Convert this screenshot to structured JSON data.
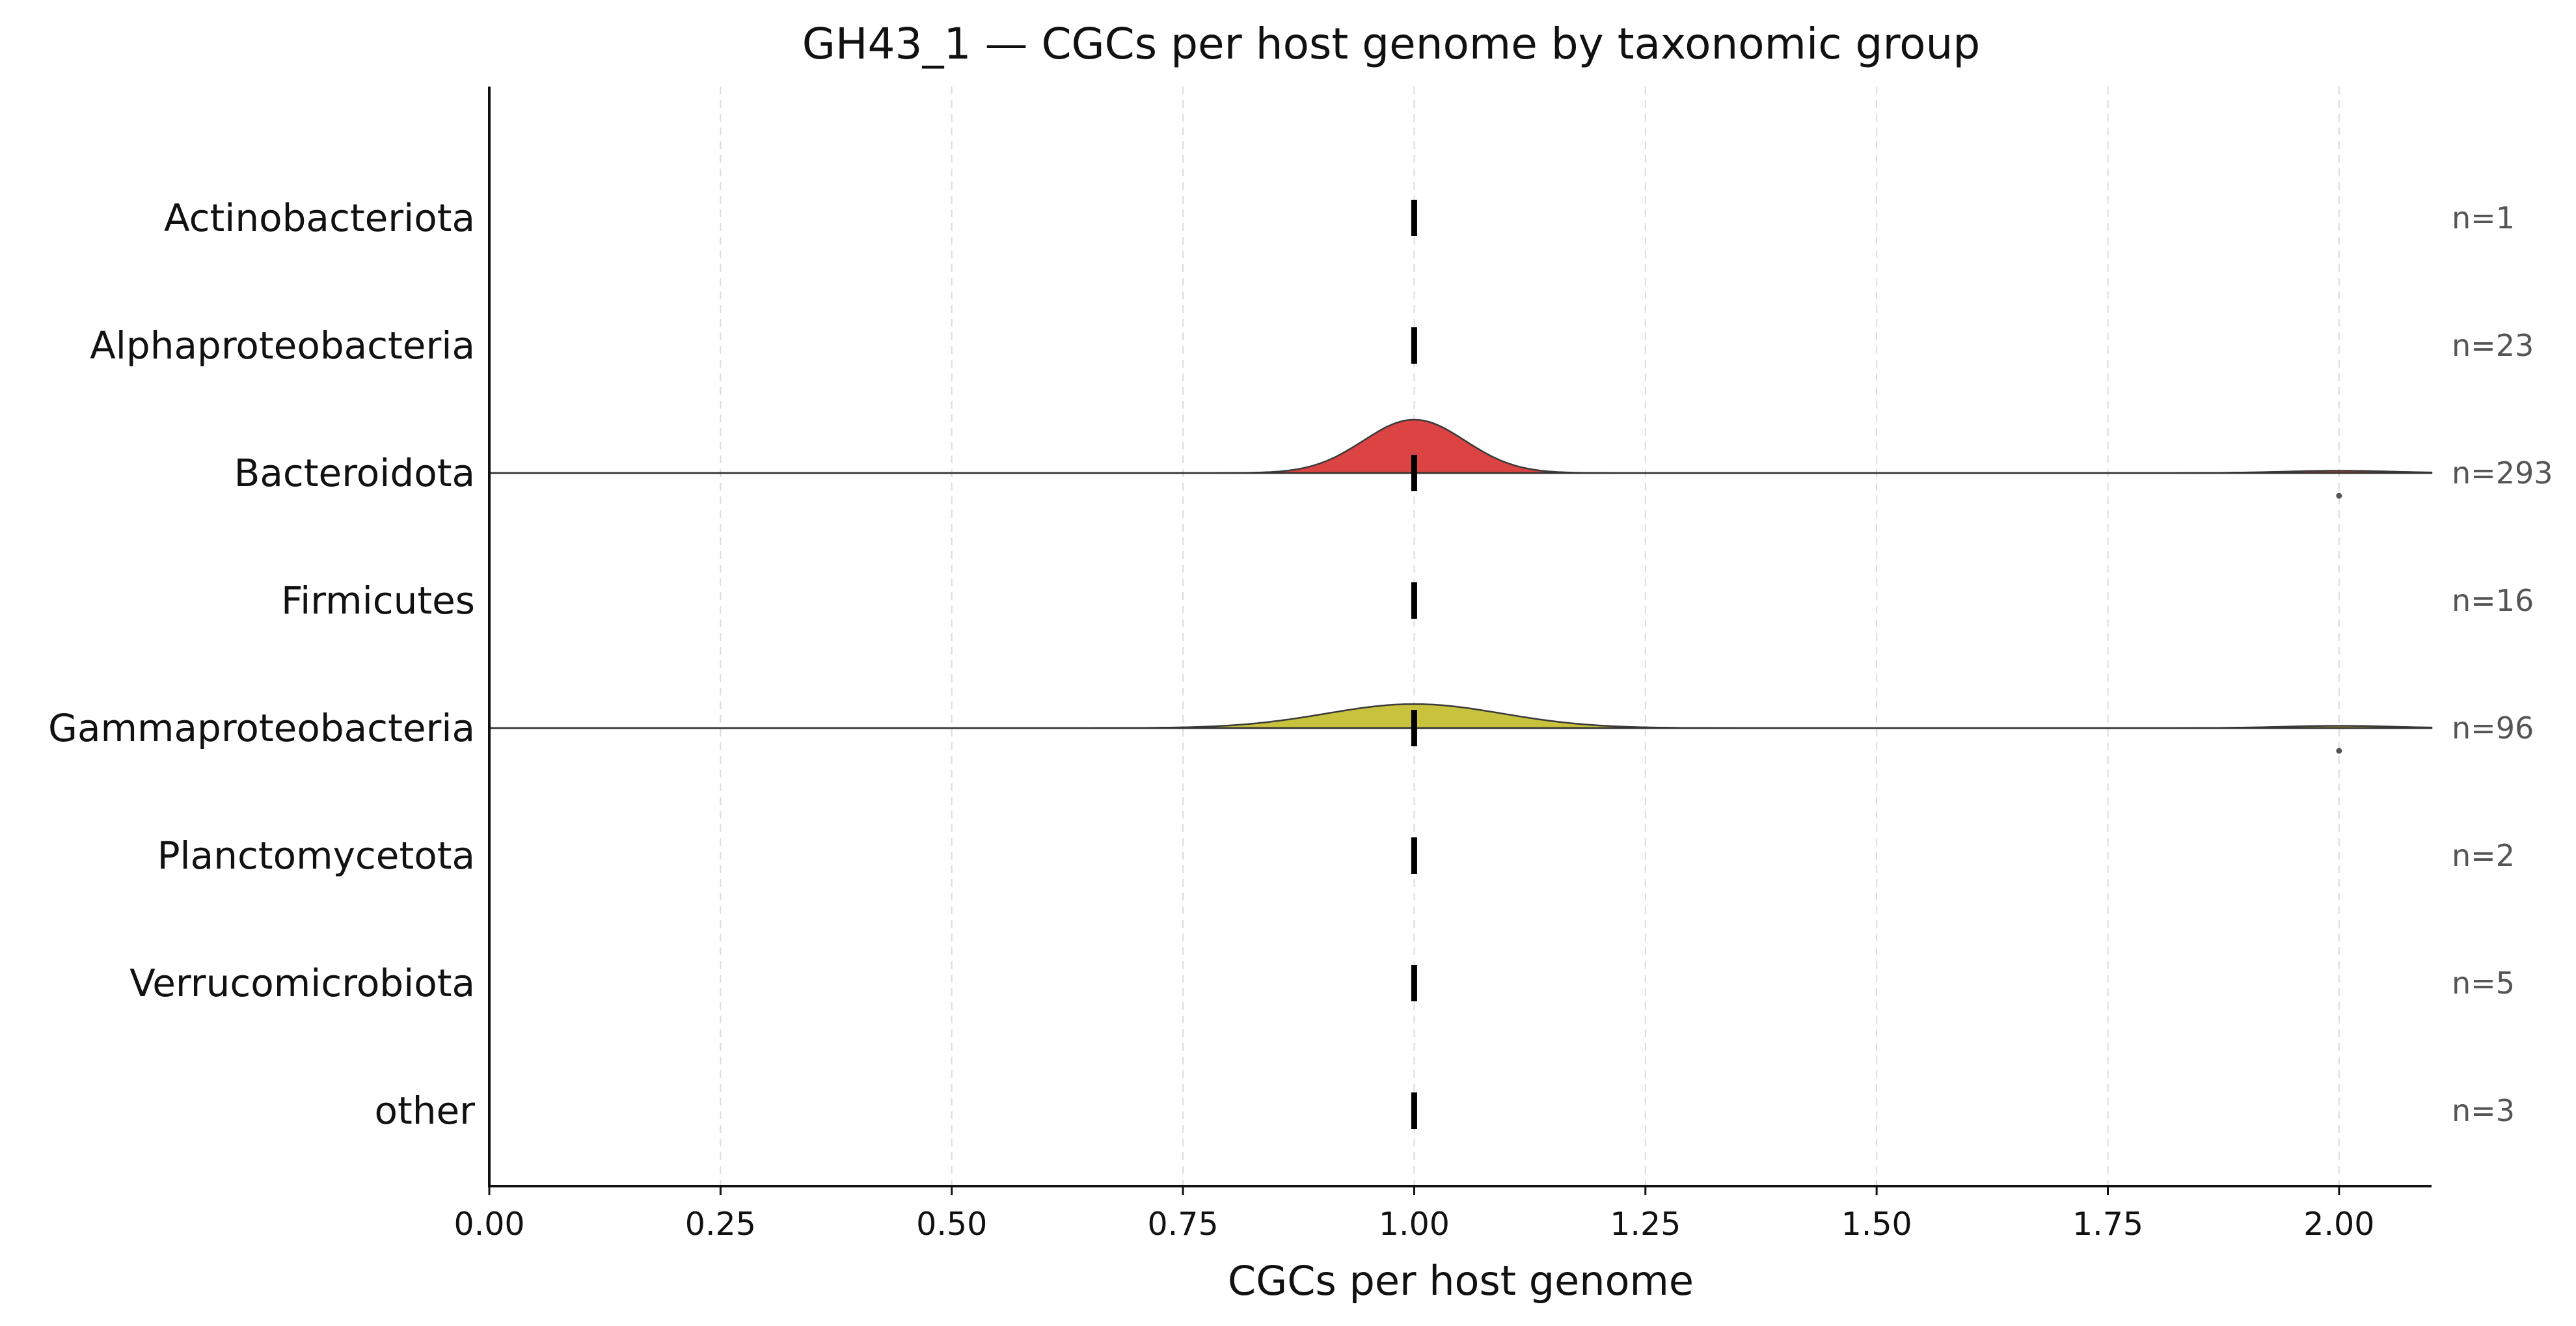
{
  "chart_data": {
    "type": "ridgeline",
    "title": "GH43_1 — CGCs per host genome by taxonomic group",
    "xlabel": "CGCs per host genome",
    "xlim": [
      0,
      2.1
    ],
    "xticks": [
      0.0,
      0.25,
      0.5,
      0.75,
      1.0,
      1.25,
      1.5,
      1.75,
      2.0
    ],
    "xtick_labels": [
      "0.00",
      "0.25",
      "0.50",
      "0.75",
      "1.00",
      "1.25",
      "1.50",
      "1.75",
      "2.00"
    ],
    "grid": "vertical dashed",
    "series": [
      {
        "name": "Actinobacteriota",
        "n_label": "n=1",
        "n": 1,
        "median": 1.0,
        "color": null,
        "density": null,
        "outliers": []
      },
      {
        "name": "Alphaproteobacteria",
        "n_label": "n=23",
        "n": 23,
        "median": 1.0,
        "color": null,
        "density": null,
        "outliers": []
      },
      {
        "name": "Bacteroidota",
        "n_label": "n=293",
        "n": 293,
        "median": 1.0,
        "color": "#dc4444",
        "density": {
          "center": 1.0,
          "sigma": 0.055,
          "peak_relative": 1.0,
          "tail_at": 2.0
        },
        "outliers": [
          2.0
        ]
      },
      {
        "name": "Firmicutes",
        "n_label": "n=16",
        "n": 16,
        "median": 1.0,
        "color": null,
        "density": null,
        "outliers": []
      },
      {
        "name": "Gammaproteobacteria",
        "n_label": "n=96",
        "n": 96,
        "median": 1.0,
        "color": "#c8c23c",
        "density": {
          "center": 1.0,
          "sigma": 0.095,
          "peak_relative": 0.45,
          "tail_at": 2.0
        },
        "outliers": [
          2.0
        ]
      },
      {
        "name": "Planctomycetota",
        "n_label": "n=2",
        "n": 2,
        "median": 1.0,
        "color": null,
        "density": null,
        "outliers": []
      },
      {
        "name": "Verrucomicrobiota",
        "n_label": "n=5",
        "n": 5,
        "median": 1.0,
        "color": null,
        "density": null,
        "outliers": []
      },
      {
        "name": "other",
        "n_label": "n=3",
        "n": 3,
        "median": 1.0,
        "color": null,
        "density": null,
        "outliers": []
      }
    ]
  }
}
